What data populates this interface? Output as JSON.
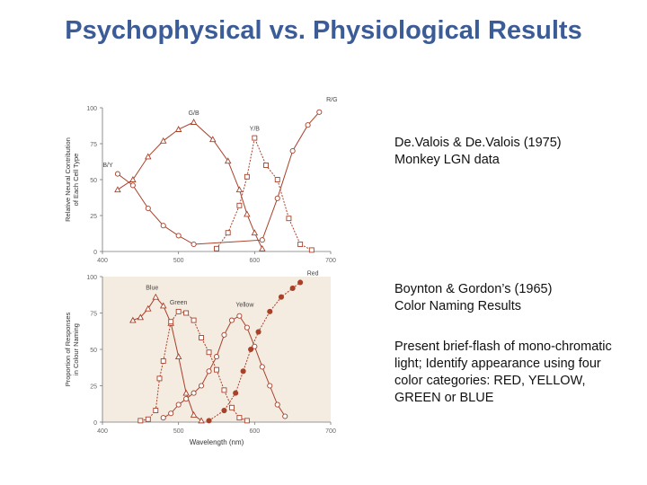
{
  "slide": {
    "title": "Psychophysical vs. Physiological Results"
  },
  "notes": {
    "top": {
      "lines": [
        "De.Valois & De.Valois (1975)",
        "Monkey LGN data"
      ]
    },
    "middle": {
      "lines": [
        "Boynton & Gordon’s (1965)",
        "Color Naming Results"
      ]
    },
    "bottom": {
      "text": "Present brief-flash of mono-chromatic light; Identify appearance using four color categories: RED, YELLOW, GREEN or BLUE"
    }
  },
  "colors": {
    "title": "#3b5c97",
    "series": "#a8412a",
    "panel_top": "#ffffff",
    "panel_bottom": "#f4ebe1"
  },
  "chart_data": [
    {
      "type": "line",
      "ylabel": "Relative Neural Contribution of Each Cell Type",
      "xlim": [
        400,
        700
      ],
      "ylim": [
        0,
        100
      ],
      "xticks": [
        "400",
        "500",
        "600",
        "700"
      ],
      "yticks": [
        "0",
        "25",
        "50",
        "75",
        "100"
      ],
      "series": [
        {
          "name": "G/B",
          "marker": "triangle",
          "points": [
            [
              420,
              43
            ],
            [
              440,
              50
            ],
            [
              460,
              66
            ],
            [
              480,
              77
            ],
            [
              500,
              85
            ],
            [
              520,
              90
            ],
            [
              545,
              78
            ],
            [
              565,
              63
            ],
            [
              580,
              43
            ],
            [
              590,
              26
            ],
            [
              600,
              13
            ],
            [
              610,
              2
            ]
          ]
        },
        {
          "name": "Y/B",
          "marker": "square",
          "points": [
            [
              550,
              2
            ],
            [
              565,
              13
            ],
            [
              580,
              32
            ],
            [
              590,
              52
            ],
            [
              600,
              79
            ],
            [
              615,
              60
            ],
            [
              630,
              50
            ],
            [
              645,
              23
            ],
            [
              660,
              5
            ],
            [
              675,
              1
            ]
          ]
        },
        {
          "name": "R/G",
          "marker": "circle",
          "points": [
            [
              420,
              54
            ],
            [
              440,
              46
            ],
            [
              460,
              30
            ],
            [
              480,
              18
            ],
            [
              500,
              11
            ],
            [
              520,
              5
            ],
            [
              610,
              8
            ],
            [
              630,
              37
            ],
            [
              650,
              70
            ],
            [
              670,
              88
            ],
            [
              685,
              97
            ]
          ]
        },
        {
          "name": "B/Y",
          "marker": "dot",
          "points": []
        }
      ]
    },
    {
      "type": "line",
      "xlabel": "Wavelength (nm)",
      "ylabel": "Proportion of Responses in Colour Naming",
      "xlim": [
        400,
        700
      ],
      "ylim": [
        0,
        100
      ],
      "xticks": [
        "400",
        "500",
        "600",
        "700"
      ],
      "yticks": [
        "0",
        "25",
        "50",
        "75",
        "100"
      ],
      "series": [
        {
          "name": "Blue",
          "marker": "triangle",
          "points": [
            [
              440,
              70
            ],
            [
              450,
              72
            ],
            [
              460,
              78
            ],
            [
              470,
              86
            ],
            [
              480,
              80
            ],
            [
              490,
              68
            ],
            [
              500,
              45
            ],
            [
              510,
              20
            ],
            [
              520,
              5
            ],
            [
              530,
              1
            ]
          ]
        },
        {
          "name": "Green",
          "marker": "square",
          "points": [
            [
              450,
              1
            ],
            [
              460,
              2
            ],
            [
              470,
              8
            ],
            [
              475,
              30
            ],
            [
              480,
              42
            ],
            [
              490,
              69
            ],
            [
              500,
              76
            ],
            [
              510,
              75
            ],
            [
              520,
              70
            ],
            [
              530,
              58
            ],
            [
              540,
              48
            ],
            [
              550,
              36
            ],
            [
              560,
              22
            ],
            [
              570,
              10
            ],
            [
              580,
              3
            ],
            [
              590,
              1
            ]
          ]
        },
        {
          "name": "Yellow",
          "marker": "circle",
          "points": [
            [
              480,
              3
            ],
            [
              490,
              6
            ],
            [
              500,
              12
            ],
            [
              510,
              16
            ],
            [
              520,
              20
            ],
            [
              530,
              25
            ],
            [
              540,
              35
            ],
            [
              550,
              45
            ],
            [
              560,
              60
            ],
            [
              570,
              70
            ],
            [
              580,
              73
            ],
            [
              590,
              65
            ],
            [
              600,
              52
            ],
            [
              610,
              38
            ],
            [
              620,
              25
            ],
            [
              630,
              12
            ],
            [
              640,
              4
            ]
          ]
        },
        {
          "name": "Red",
          "marker": "dot",
          "points": [
            [
              540,
              1
            ],
            [
              560,
              8
            ],
            [
              575,
              20
            ],
            [
              585,
              35
            ],
            [
              595,
              50
            ],
            [
              605,
              62
            ],
            [
              620,
              76
            ],
            [
              635,
              86
            ],
            [
              650,
              92
            ],
            [
              660,
              96
            ]
          ]
        }
      ]
    }
  ]
}
